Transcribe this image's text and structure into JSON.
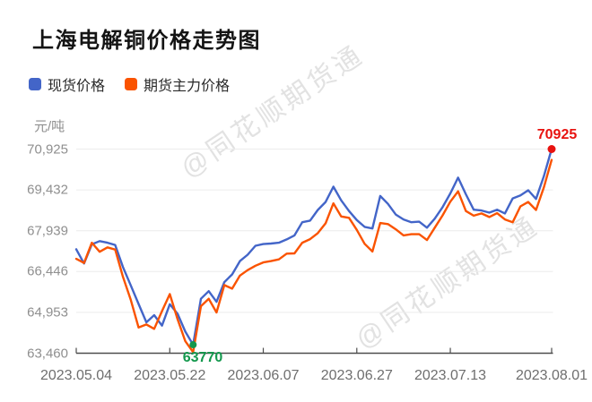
{
  "header": {
    "title": "上海电解铜价格走势图"
  },
  "legend": [
    {
      "key": "spot",
      "label": "现货价格",
      "color": "#4365c8"
    },
    {
      "key": "futures",
      "label": "期货主力价格",
      "color": "#fa5300"
    }
  ],
  "y_axis": {
    "unit": "元/吨",
    "tick_labels": [
      "70,925",
      "69,432",
      "67,939",
      "66,446",
      "64,953",
      "63,460"
    ],
    "tick_values": [
      70925,
      69432,
      67939,
      66446,
      64953,
      63460
    ]
  },
  "x_axis": {
    "tick_labels": [
      "2023.05.04",
      "2023.05.22",
      "2023.06.07",
      "2023.06.27",
      "2023.07.13",
      "2023.08.01"
    ],
    "tick_indices": [
      0,
      12,
      24,
      36,
      48,
      61
    ]
  },
  "watermark": {
    "text": "@同花顺期货通"
  },
  "annotations": {
    "max": {
      "label": "70925",
      "value": 70925,
      "index": 61,
      "series": "现货价格",
      "color": "#e8120f"
    },
    "min": {
      "label": "63770",
      "value": 63770,
      "index": 15,
      "series": "现货价格",
      "color": "#13984d"
    }
  },
  "colors": {
    "spot_line": "#4365c8",
    "futures_line": "#fa5300",
    "grid": "#ececec",
    "axis": "#4d4d4d",
    "y_tick_text": "#8f8f8f",
    "x_tick_text": "#6e6e6e",
    "title_text": "#141414",
    "max_marker": "#e8120f",
    "min_marker": "#13984d",
    "watermark": "#e2e2e2"
  },
  "chart_data": {
    "type": "line",
    "title": "上海电解铜价格走势图",
    "xlabel": "",
    "ylabel": "元/吨",
    "ylim": [
      63460,
      70925
    ],
    "grid": true,
    "legend_position": "top-left",
    "x_tick_labels": [
      "2023.05.04",
      "2023.05.22",
      "2023.06.07",
      "2023.06.27",
      "2023.07.13",
      "2023.08.01"
    ],
    "x_tick_indices": [
      0,
      12,
      24,
      36,
      48,
      61
    ],
    "series": [
      {
        "name": "现货价格",
        "color": "#4365c8",
        "values": [
          67260,
          66740,
          67440,
          67560,
          67500,
          67420,
          66610,
          65940,
          65260,
          64590,
          64850,
          64470,
          65250,
          64900,
          64250,
          63770,
          65450,
          65730,
          65340,
          66060,
          66340,
          66830,
          67060,
          67390,
          67450,
          67470,
          67500,
          67620,
          67770,
          68250,
          68310,
          68700,
          68990,
          69550,
          69050,
          68660,
          68330,
          68080,
          68020,
          69210,
          68920,
          68530,
          68350,
          68250,
          68270,
          68050,
          68380,
          68800,
          69300,
          69880,
          69270,
          68710,
          68680,
          68600,
          68710,
          68570,
          69120,
          69230,
          69420,
          69100,
          69930,
          70925
        ]
      },
      {
        "name": "期货主力价格",
        "color": "#fa5300",
        "values": [
          66910,
          66760,
          67500,
          67170,
          67330,
          67250,
          66250,
          65410,
          64400,
          64510,
          64350,
          65000,
          65620,
          64700,
          63900,
          63500,
          65180,
          65450,
          64950,
          65950,
          65820,
          66300,
          66500,
          66660,
          66780,
          66830,
          66890,
          67100,
          67110,
          67500,
          67630,
          67850,
          68210,
          68940,
          68460,
          68410,
          67970,
          67460,
          67180,
          68220,
          68180,
          67990,
          67770,
          67810,
          67810,
          67600,
          68050,
          68500,
          69000,
          69380,
          68660,
          68490,
          68570,
          68440,
          68580,
          68350,
          68250,
          68830,
          68990,
          68700,
          69520,
          70530
        ]
      }
    ]
  }
}
